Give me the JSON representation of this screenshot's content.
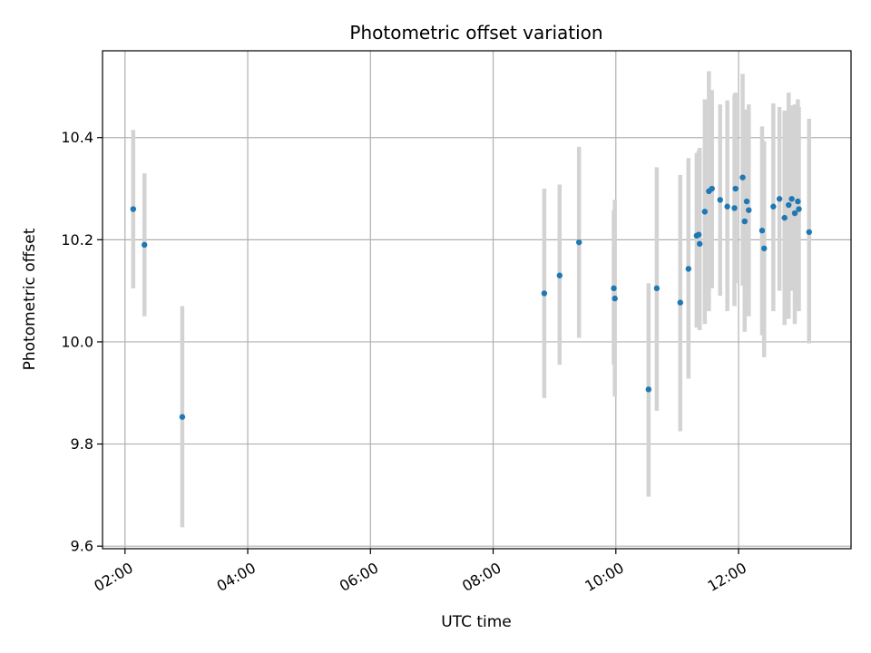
{
  "chart_data": {
    "type": "scatter",
    "title": "Photometric offset variation",
    "xlabel": "UTC time",
    "ylabel": "Photometric offset",
    "x_unit": "UTC time (HH:MM)",
    "xlim": [
      "01:38",
      "13:50"
    ],
    "ylim": [
      9.595,
      10.57
    ],
    "x_ticks": [
      "02:00",
      "04:00",
      "06:00",
      "08:00",
      "10:00",
      "12:00"
    ],
    "y_ticks": [
      "9.6",
      "9.8",
      "10.0",
      "10.2",
      "10.4"
    ],
    "grid": true,
    "error_bar_style": "vertical light-gray bars",
    "colors": {
      "points": "#1f77b4",
      "errorbars": "#d3d3d3",
      "grid": "#b0b0b0"
    },
    "series": [
      {
        "points": [
          {
            "x": "02:08",
            "y": 10.26,
            "lo": 10.105,
            "hi": 10.415
          },
          {
            "x": "02:19",
            "y": 10.19,
            "lo": 10.05,
            "hi": 10.33
          },
          {
            "x": "02:56",
            "y": 9.853,
            "lo": 9.637,
            "hi": 10.07
          },
          {
            "x": "08:50",
            "y": 10.095,
            "lo": 9.89,
            "hi": 10.3
          },
          {
            "x": "09:05",
            "y": 10.13,
            "lo": 9.955,
            "hi": 10.308
          },
          {
            "x": "09:24",
            "y": 10.195,
            "lo": 10.008,
            "hi": 10.382
          },
          {
            "x": "09:58",
            "y": 10.105,
            "lo": 9.955,
            "hi": 10.258
          },
          {
            "x": "09:59",
            "y": 10.085,
            "lo": 9.893,
            "hi": 10.278
          },
          {
            "x": "10:32",
            "y": 9.907,
            "lo": 9.697,
            "hi": 10.115
          },
          {
            "x": "10:40",
            "y": 10.105,
            "lo": 9.865,
            "hi": 10.342
          },
          {
            "x": "11:03",
            "y": 10.077,
            "lo": 9.825,
            "hi": 10.327
          },
          {
            "x": "11:11",
            "y": 10.143,
            "lo": 9.928,
            "hi": 10.36
          },
          {
            "x": "11:19",
            "y": 10.208,
            "lo": 10.028,
            "hi": 10.37
          },
          {
            "x": "11:21",
            "y": 10.21,
            "lo": 10.03,
            "hi": 10.375
          },
          {
            "x": "11:22",
            "y": 10.192,
            "lo": 10.023,
            "hi": 10.38
          },
          {
            "x": "11:27",
            "y": 10.255,
            "lo": 10.035,
            "hi": 10.475
          },
          {
            "x": "11:31",
            "y": 10.295,
            "lo": 10.06,
            "hi": 10.53
          },
          {
            "x": "11:34",
            "y": 10.3,
            "lo": 10.105,
            "hi": 10.493
          },
          {
            "x": "11:42",
            "y": 10.278,
            "lo": 10.09,
            "hi": 10.465
          },
          {
            "x": "11:49",
            "y": 10.265,
            "lo": 10.06,
            "hi": 10.473
          },
          {
            "x": "11:56",
            "y": 10.262,
            "lo": 10.07,
            "hi": 10.485
          },
          {
            "x": "11:57",
            "y": 10.3,
            "lo": 10.115,
            "hi": 10.488
          },
          {
            "x": "12:04",
            "y": 10.322,
            "lo": 10.11,
            "hi": 10.525
          },
          {
            "x": "12:06",
            "y": 10.236,
            "lo": 10.02,
            "hi": 10.455
          },
          {
            "x": "12:08",
            "y": 10.275,
            "lo": 10.1,
            "hi": 10.453
          },
          {
            "x": "12:10",
            "y": 10.258,
            "lo": 10.05,
            "hi": 10.465
          },
          {
            "x": "12:23",
            "y": 10.218,
            "lo": 10.013,
            "hi": 10.422
          },
          {
            "x": "12:25",
            "y": 10.183,
            "lo": 9.97,
            "hi": 10.393
          },
          {
            "x": "12:34",
            "y": 10.265,
            "lo": 10.06,
            "hi": 10.467
          },
          {
            "x": "12:40",
            "y": 10.28,
            "lo": 10.1,
            "hi": 10.46
          },
          {
            "x": "12:45",
            "y": 10.243,
            "lo": 10.033,
            "hi": 10.453
          },
          {
            "x": "12:49",
            "y": 10.268,
            "lo": 10.045,
            "hi": 10.488
          },
          {
            "x": "12:52",
            "y": 10.28,
            "lo": 10.1,
            "hi": 10.463
          },
          {
            "x": "12:55",
            "y": 10.252,
            "lo": 10.035,
            "hi": 10.465
          },
          {
            "x": "12:58",
            "y": 10.275,
            "lo": 10.07,
            "hi": 10.475
          },
          {
            "x": "12:59",
            "y": 10.26,
            "lo": 10.06,
            "hi": 10.46
          },
          {
            "x": "13:09",
            "y": 10.215,
            "lo": 9.997,
            "hi": 10.437
          }
        ]
      }
    ]
  }
}
